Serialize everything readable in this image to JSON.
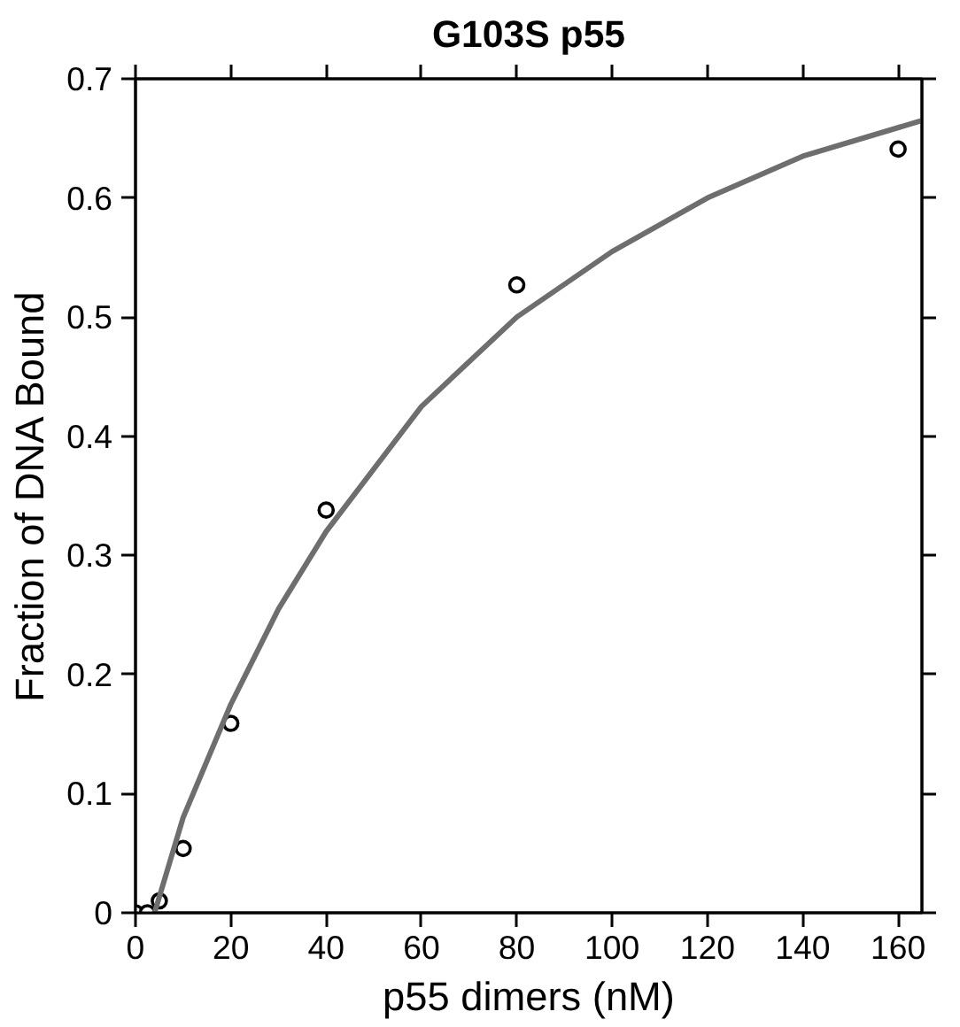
{
  "chart_data": {
    "type": "scatter",
    "title": "G103S p55",
    "xlabel": "p55 dimers (nM)",
    "ylabel": "Fraction of DNA Bound",
    "xlim": [
      0,
      165
    ],
    "ylim": [
      0,
      0.7
    ],
    "xticks": [
      0,
      20,
      40,
      60,
      80,
      100,
      120,
      140,
      160
    ],
    "yticks": [
      0,
      0.1,
      0.2,
      0.3,
      0.4,
      0.5,
      0.6,
      0.7
    ],
    "grid": false,
    "marker": "circle",
    "series": [
      {
        "color": "#000000",
        "x": [
          0,
          2.5,
          5,
          10,
          20,
          40,
          80,
          160
        ],
        "values": [
          0,
          0,
          0.01,
          0.054,
          0.159,
          0.338,
          0.527,
          0.641
        ]
      },
      {
        "type": "line",
        "color": "#6e6e6e",
        "marker": "none",
        "line_style": "solid",
        "x": [
          4,
          10,
          20,
          30,
          40,
          60,
          80,
          100,
          120,
          140,
          165
        ],
        "values": [
          0,
          0.08,
          0.175,
          0.255,
          0.32,
          0.425,
          0.5,
          0.555,
          0.6,
          0.635,
          0.665
        ]
      }
    ]
  }
}
